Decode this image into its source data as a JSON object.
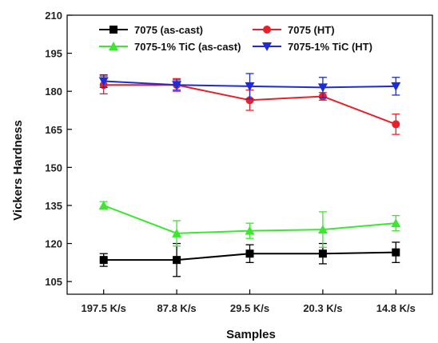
{
  "chart_data": {
    "type": "line",
    "xlabel": "Samples",
    "ylabel": "Vickers Hardness",
    "categories": [
      "197.5 K/s",
      "87.8 K/s",
      "29.5 K/s",
      "20.3 K/s",
      "14.8 K/s"
    ],
    "ylim": [
      100,
      210
    ],
    "yticks": [
      105,
      120,
      135,
      150,
      165,
      180,
      195,
      210
    ],
    "grid": false,
    "legend_position": "top",
    "series": [
      {
        "name": "7075 (as-cast)",
        "color": "#000000",
        "marker": "square",
        "values": [
          113.5,
          113.5,
          116,
          116,
          116.5
        ],
        "errors": [
          2.5,
          6.5,
          3.5,
          4,
          4
        ]
      },
      {
        "name": "7075 (HT)",
        "color": "#e8202a",
        "marker": "circle",
        "values": [
          182.5,
          182.5,
          176.5,
          178,
          167
        ],
        "errors": [
          3.5,
          2.5,
          4,
          1.5,
          4
        ]
      },
      {
        "name": "7075-1% TiC (as-cast)",
        "color": "#3ee632",
        "marker": "triangle-up",
        "values": [
          135,
          124,
          125,
          125.5,
          128
        ],
        "errors": [
          1.5,
          5,
          3,
          7,
          3
        ]
      },
      {
        "name": "7075-1% TiC (HT)",
        "color": "#1f2bd6",
        "marker": "triangle-down",
        "values": [
          184,
          182.5,
          182,
          181.5,
          182
        ],
        "errors": [
          2.5,
          2,
          5,
          4,
          3.5
        ]
      }
    ]
  }
}
